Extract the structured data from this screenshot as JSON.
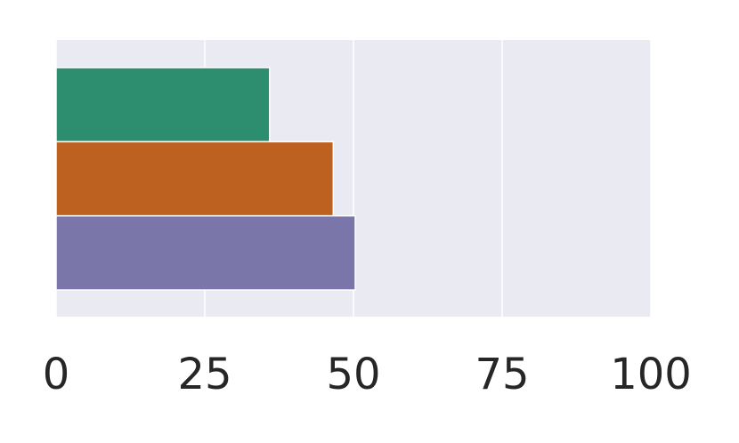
{
  "chart_data": {
    "type": "barh",
    "categories": [
      null,
      null,
      null
    ],
    "values": [
      35.9,
      46.6,
      50.3
    ],
    "colors": [
      "#2d8e6f",
      "#bd6120",
      "#7b76aa"
    ],
    "xlim": [
      0,
      100
    ],
    "xticks": [
      0,
      25,
      50,
      75,
      100
    ],
    "grid": true
  }
}
